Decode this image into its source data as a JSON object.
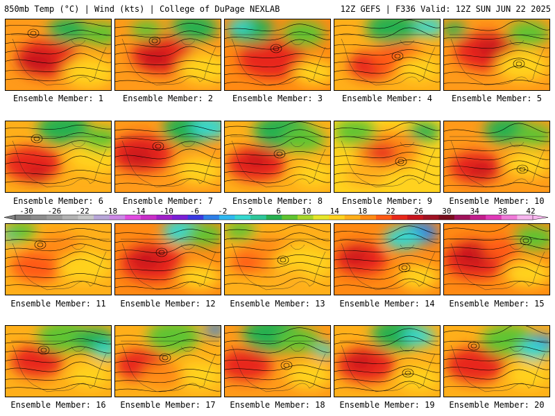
{
  "header": {
    "left": "850mb Temp (°C) | Wind (kts) | College of DuPage NEXLAB",
    "right": "12Z GEFS | F336 Valid: 12Z SUN JUN 22 2025"
  },
  "members": [
    "Ensemble Member: 1",
    "Ensemble Member: 2",
    "Ensemble Member: 3",
    "Ensemble Member: 4",
    "Ensemble Member: 5",
    "Ensemble Member: 6",
    "Ensemble Member: 7",
    "Ensemble Member: 8",
    "Ensemble Member: 9",
    "Ensemble Member: 10",
    "Ensemble Member: 11",
    "Ensemble Member: 12",
    "Ensemble Member: 13",
    "Ensemble Member: 14",
    "Ensemble Member: 15",
    "Ensemble Member: 16",
    "Ensemble Member: 17",
    "Ensemble Member: 18",
    "Ensemble Member: 19",
    "Ensemble Member: 20"
  ],
  "colorbar": {
    "ticks": [
      "-30",
      "-26",
      "-22",
      "-18",
      "-14",
      "-10",
      "-6",
      "-2",
      "2",
      "6",
      "10",
      "14",
      "18",
      "22",
      "26",
      "30",
      "34",
      "38",
      "42"
    ],
    "colors": [
      "#7f7f7f",
      "#8c8c8c",
      "#9c9c9c",
      "#b3b3b3",
      "#c7c7c7",
      "#b7a6d8",
      "#cc88e6",
      "#e14be0",
      "#c92fc9",
      "#a01fc8",
      "#7a1fd6",
      "#3a3ae0",
      "#2e7fe8",
      "#2fb8f0",
      "#35d8d0",
      "#2ec79a",
      "#27b050",
      "#5fc430",
      "#a8d62a",
      "#e6e62a",
      "#ffd21f",
      "#ffaf1a",
      "#ff8a14",
      "#ff5a14",
      "#e8281a",
      "#c8141e",
      "#a01224",
      "#7a0e1e",
      "#a0125a",
      "#c21e8c",
      "#e03ab8",
      "#f07ad8",
      "#f7b6ee"
    ]
  },
  "panel_themes": [
    {
      "bg": "#ff9a1a",
      "blobs": [
        [
          "#e8281a",
          0.4,
          0.55,
          0.3
        ],
        [
          "#c8141e",
          0.3,
          0.6,
          0.18
        ],
        [
          "#ffd21f",
          0.8,
          0.75,
          0.25
        ],
        [
          "#27b050",
          0.6,
          0.15,
          0.2
        ],
        [
          "#5fc430",
          0.9,
          0.2,
          0.18
        ]
      ]
    },
    {
      "bg": "#ff9a1a",
      "blobs": [
        [
          "#e8281a",
          0.45,
          0.5,
          0.3
        ],
        [
          "#c8141e",
          0.38,
          0.55,
          0.16
        ],
        [
          "#ffd21f",
          0.85,
          0.7,
          0.25
        ],
        [
          "#27b050",
          0.75,
          0.12,
          0.22
        ],
        [
          "#5fc430",
          0.3,
          0.15,
          0.15
        ]
      ]
    },
    {
      "bg": "#ff8a14",
      "blobs": [
        [
          "#e8281a",
          0.45,
          0.55,
          0.32
        ],
        [
          "#27b050",
          0.25,
          0.15,
          0.22
        ],
        [
          "#5fc430",
          0.75,
          0.2,
          0.2
        ],
        [
          "#35d8d0",
          0.15,
          0.1,
          0.12
        ],
        [
          "#ffd21f",
          0.85,
          0.75,
          0.2
        ]
      ]
    },
    {
      "bg": "#ffaf1a",
      "blobs": [
        [
          "#e8281a",
          0.35,
          0.65,
          0.22
        ],
        [
          "#ff5a14",
          0.6,
          0.55,
          0.25
        ],
        [
          "#27b050",
          0.55,
          0.12,
          0.25
        ],
        [
          "#35d8d0",
          0.9,
          0.1,
          0.15
        ],
        [
          "#ffd21f",
          0.8,
          0.7,
          0.2
        ]
      ]
    },
    {
      "bg": "#ff9a1a",
      "blobs": [
        [
          "#e8281a",
          0.4,
          0.45,
          0.3
        ],
        [
          "#c8141e",
          0.45,
          0.4,
          0.15
        ],
        [
          "#ffd21f",
          0.75,
          0.65,
          0.25
        ],
        [
          "#5fc430",
          0.8,
          0.2,
          0.2
        ],
        [
          "#27b050",
          0.1,
          0.15,
          0.12
        ]
      ]
    },
    {
      "bg": "#ffaf1a",
      "blobs": [
        [
          "#e8281a",
          0.25,
          0.6,
          0.28
        ],
        [
          "#c8141e",
          0.3,
          0.75,
          0.12
        ],
        [
          "#27b050",
          0.55,
          0.1,
          0.25
        ],
        [
          "#ffd21f",
          0.85,
          0.5,
          0.25
        ],
        [
          "#5fc430",
          0.9,
          0.25,
          0.18
        ]
      ]
    },
    {
      "bg": "#ff9a1a",
      "blobs": [
        [
          "#e8281a",
          0.25,
          0.45,
          0.3
        ],
        [
          "#c8141e",
          0.22,
          0.5,
          0.15
        ],
        [
          "#27b050",
          0.7,
          0.1,
          0.25
        ],
        [
          "#35d8d0",
          0.9,
          0.08,
          0.18
        ],
        [
          "#ffd21f",
          0.8,
          0.7,
          0.22
        ]
      ]
    },
    {
      "bg": "#ffaf1a",
      "blobs": [
        [
          "#e8281a",
          0.3,
          0.6,
          0.28
        ],
        [
          "#27b050",
          0.55,
          0.15,
          0.28
        ],
        [
          "#5fc430",
          0.75,
          0.25,
          0.2
        ],
        [
          "#ffd21f",
          0.85,
          0.75,
          0.2
        ],
        [
          "#c8141e",
          0.3,
          0.55,
          0.12
        ]
      ]
    },
    {
      "bg": "#ffd21f",
      "blobs": [
        [
          "#ff8a14",
          0.5,
          0.4,
          0.3
        ],
        [
          "#e8281a",
          0.45,
          0.45,
          0.15
        ],
        [
          "#5fc430",
          0.2,
          0.15,
          0.2
        ],
        [
          "#27b050",
          0.85,
          0.15,
          0.15
        ],
        [
          "#ffaf1a",
          0.3,
          0.75,
          0.2
        ]
      ]
    },
    {
      "bg": "#ff9a1a",
      "blobs": [
        [
          "#e8281a",
          0.3,
          0.65,
          0.25
        ],
        [
          "#c8141e",
          0.35,
          0.7,
          0.12
        ],
        [
          "#27b050",
          0.6,
          0.12,
          0.22
        ],
        [
          "#5fc430",
          0.85,
          0.2,
          0.18
        ],
        [
          "#ffd21f",
          0.8,
          0.6,
          0.22
        ]
      ]
    },
    {
      "bg": "#ffaf1a",
      "blobs": [
        [
          "#ff5a14",
          0.3,
          0.6,
          0.25
        ],
        [
          "#35d8d0",
          0.08,
          0.15,
          0.12
        ],
        [
          "#5fc430",
          0.15,
          0.1,
          0.15
        ],
        [
          "#ffd21f",
          0.75,
          0.6,
          0.25
        ],
        [
          "#ff8a14",
          0.5,
          0.3,
          0.2
        ]
      ]
    },
    {
      "bg": "#ff8a14",
      "blobs": [
        [
          "#e8281a",
          0.35,
          0.55,
          0.3
        ],
        [
          "#c8141e",
          0.3,
          0.5,
          0.15
        ],
        [
          "#35d8d0",
          0.65,
          0.1,
          0.2
        ],
        [
          "#5fc430",
          0.85,
          0.15,
          0.18
        ],
        [
          "#ffd21f",
          0.8,
          0.75,
          0.2
        ]
      ]
    },
    {
      "bg": "#ffaf1a",
      "blobs": [
        [
          "#ff8a14",
          0.4,
          0.45,
          0.3
        ],
        [
          "#ffd21f",
          0.75,
          0.55,
          0.28
        ],
        [
          "#5fc430",
          0.15,
          0.1,
          0.15
        ],
        [
          "#ff5a14",
          0.2,
          0.55,
          0.15
        ],
        [
          "#ffaf1a",
          0.6,
          0.8,
          0.2
        ]
      ]
    },
    {
      "bg": "#ff8a14",
      "blobs": [
        [
          "#e8281a",
          0.25,
          0.5,
          0.25
        ],
        [
          "#c8141e",
          0.2,
          0.45,
          0.12
        ],
        [
          "#2e7fe8",
          0.8,
          0.12,
          0.18
        ],
        [
          "#35d8d0",
          0.65,
          0.2,
          0.18
        ],
        [
          "#ffd21f",
          0.8,
          0.75,
          0.2
        ]
      ]
    },
    {
      "bg": "#ff8a14",
      "blobs": [
        [
          "#e8281a",
          0.3,
          0.5,
          0.3
        ],
        [
          "#c8141e",
          0.28,
          0.45,
          0.18
        ],
        [
          "#5fc430",
          0.85,
          0.2,
          0.2
        ],
        [
          "#ffd21f",
          0.8,
          0.7,
          0.22
        ],
        [
          "#ff5a14",
          0.55,
          0.35,
          0.18
        ]
      ]
    },
    {
      "bg": "#ffaf1a",
      "blobs": [
        [
          "#e8281a",
          0.3,
          0.5,
          0.25
        ],
        [
          "#5fc430",
          0.55,
          0.15,
          0.25
        ],
        [
          "#27b050",
          0.85,
          0.2,
          0.2
        ],
        [
          "#35d8d0",
          0.95,
          0.35,
          0.12
        ],
        [
          "#ffd21f",
          0.8,
          0.7,
          0.2
        ]
      ]
    },
    {
      "bg": "#ffaf1a",
      "blobs": [
        [
          "#e8281a",
          0.25,
          0.55,
          0.25
        ],
        [
          "#5fc430",
          0.55,
          0.15,
          0.25
        ],
        [
          "#2e7fe8",
          0.95,
          0.05,
          0.1
        ],
        [
          "#ffd21f",
          0.8,
          0.7,
          0.22
        ],
        [
          "#ff8a14",
          0.45,
          0.7,
          0.2
        ]
      ]
    },
    {
      "bg": "#ff9a1a",
      "blobs": [
        [
          "#e8281a",
          0.2,
          0.55,
          0.25
        ],
        [
          "#27b050",
          0.45,
          0.12,
          0.28
        ],
        [
          "#5fc430",
          0.7,
          0.2,
          0.2
        ],
        [
          "#ffd21f",
          0.8,
          0.7,
          0.22
        ],
        [
          "#35d8d0",
          0.95,
          0.35,
          0.1
        ]
      ]
    },
    {
      "bg": "#ffaf1a",
      "blobs": [
        [
          "#e8281a",
          0.3,
          0.55,
          0.28
        ],
        [
          "#c8141e",
          0.25,
          0.5,
          0.12
        ],
        [
          "#27b050",
          0.6,
          0.12,
          0.25
        ],
        [
          "#35d8d0",
          0.8,
          0.15,
          0.15
        ],
        [
          "#ffd21f",
          0.8,
          0.75,
          0.2
        ]
      ]
    },
    {
      "bg": "#ffaf1a",
      "blobs": [
        [
          "#e8281a",
          0.3,
          0.55,
          0.28
        ],
        [
          "#5fc430",
          0.6,
          0.2,
          0.25
        ],
        [
          "#2e7fe8",
          0.92,
          0.25,
          0.14
        ],
        [
          "#35d8d0",
          0.85,
          0.35,
          0.15
        ],
        [
          "#ffd21f",
          0.8,
          0.7,
          0.2
        ]
      ]
    }
  ]
}
